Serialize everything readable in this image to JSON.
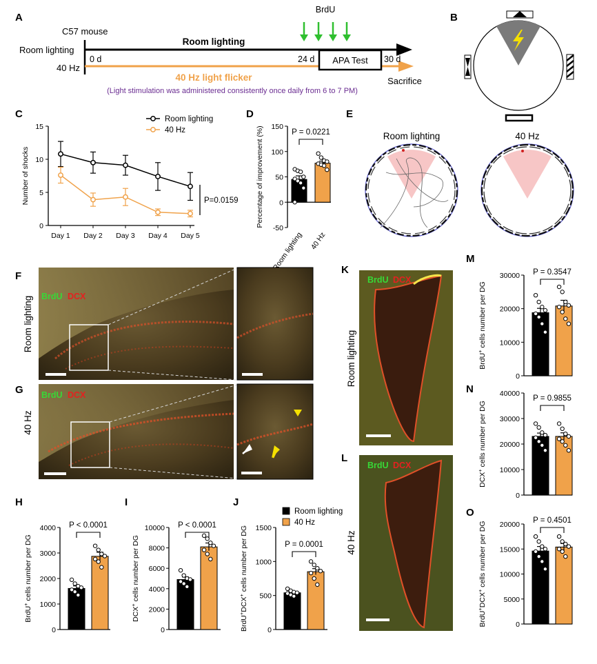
{
  "colors": {
    "room": "#000000",
    "hz40": "#f0a24a",
    "arrow_green": "#2fbf2f",
    "note_purple": "#6a2c91",
    "zone_pink": "#f7c6c6",
    "shock_gray": "#7a7a7a",
    "bolt_yellow": "#f5e000",
    "brdu_green": "#37d837",
    "dcx_red": "#e52020",
    "tissue_dark": "#3a2a14",
    "tissue_light": "#8a7444"
  },
  "icons": [
    "lightning-bolt-icon",
    "arrow-down-icon",
    "arrowhead-icon"
  ],
  "panels": {
    "a": {
      "letter": "A",
      "mouse": "C57 mouse",
      "group_room": "Room lighting",
      "group_40": "40 Hz",
      "start_day": "0 d",
      "brdu_day": "24 d",
      "end_day": "30 d",
      "room_line_label": "Room lighting",
      "flicker_label": "40 Hz light flicker",
      "brdu_label": "BrdU",
      "test_label": "APA Test",
      "sacrifice": "Sacrifice",
      "note": "(Light stimulation was administered consistently once daily from 6 to 7 PM)"
    },
    "b": {
      "letter": "B"
    },
    "c": {
      "letter": "C"
    },
    "d": {
      "letter": "D"
    },
    "e": {
      "letter": "E",
      "title_room": "Room lighting",
      "title_40": "40 Hz"
    },
    "f": {
      "letter": "F",
      "side_label": "Room lighting",
      "stain_green": "BrdU",
      "stain_red": "DCX"
    },
    "g": {
      "letter": "G",
      "side_label": "40 Hz",
      "stain_green": "BrdU",
      "stain_red": "DCX"
    },
    "h": {
      "letter": "H"
    },
    "i": {
      "letter": "I"
    },
    "j": {
      "letter": "J"
    },
    "k": {
      "letter": "K",
      "side_label": "Room lighting",
      "stain_green": "BrdU",
      "stain_red": "DCX"
    },
    "l": {
      "letter": "L",
      "side_label": "40 Hz",
      "stain_green": "BrdU",
      "stain_red": "DCX"
    },
    "m": {
      "letter": "M"
    },
    "n": {
      "letter": "N"
    },
    "o": {
      "letter": "O"
    }
  },
  "chart_data": [
    {
      "id": "c",
      "type": "line",
      "x": [
        "Day 1",
        "Day 2",
        "Day 3",
        "Day 4",
        "Day 5"
      ],
      "ylabel": "Number of shocks",
      "ylim": [
        0,
        15
      ],
      "yticks": [
        "0",
        "5",
        "10",
        "15"
      ],
      "series": [
        {
          "name": "Room lighting",
          "values": [
            10.8,
            9.5,
            9.1,
            7.4,
            5.9
          ],
          "errors": [
            1.9,
            1.6,
            1.5,
            2.1,
            2.1
          ]
        },
        {
          "name": "40 Hz",
          "values": [
            7.6,
            3.9,
            4.3,
            2.0,
            1.8
          ],
          "errors": [
            1.2,
            1.0,
            1.3,
            0.5,
            0.5
          ]
        }
      ],
      "annotation": "P=0.0159",
      "legend": "top-right"
    },
    {
      "id": "d",
      "type": "bar",
      "categories": [
        "Room lighting",
        "40 Hz"
      ],
      "values": [
        45,
        77
      ],
      "errors": [
        7,
        4
      ],
      "ylabel": "Percentage of improvement (%)",
      "ylim": [
        -50,
        150
      ],
      "yticks": [
        "-50",
        "0",
        "50",
        "100",
        "150"
      ],
      "points": [
        [
          65,
          62,
          60,
          50,
          46,
          42,
          38,
          28,
          0
        ],
        [
          96,
          88,
          82,
          80,
          76,
          74,
          72,
          64
        ]
      ],
      "annotation": "P = 0.0221"
    },
    {
      "id": "h",
      "type": "bar",
      "categories": [
        "Room lighting",
        "40 Hz"
      ],
      "values": [
        1610,
        2870
      ],
      "errors": [
        100,
        160
      ],
      "ylabel": "BrdU+ cells number per DG",
      "ylim": [
        0,
        4000
      ],
      "yticks": [
        "0",
        "1000",
        "2000",
        "3000",
        "4000"
      ],
      "points": [
        [
          1950,
          1800,
          1700,
          1640,
          1560,
          1480,
          1350
        ],
        [
          3280,
          3120,
          2960,
          2880,
          2760,
          2660,
          2440
        ]
      ],
      "annotation": "P < 0.0001"
    },
    {
      "id": "i",
      "type": "bar",
      "categories": [
        "Room lighting",
        "40 Hz"
      ],
      "values": [
        4900,
        8100
      ],
      "errors": [
        250,
        380
      ],
      "ylabel": "DCX+ cells number per DG",
      "ylim": [
        0,
        10000
      ],
      "yticks": [
        "0",
        "2000",
        "4000",
        "6000",
        "8000",
        "10000"
      ],
      "points": [
        [
          5800,
          5300,
          5000,
          4900,
          4700,
          4500,
          4200
        ],
        [
          9200,
          8900,
          8500,
          8200,
          7800,
          7400,
          6900
        ]
      ],
      "annotation": "P < 0.0001"
    },
    {
      "id": "j",
      "type": "bar",
      "categories": [
        "Room lighting",
        "40 Hz"
      ],
      "values": [
        540,
        850
      ],
      "errors": [
        18,
        45
      ],
      "ylabel": "BrdU+DCX+ cells number per DG",
      "ylim": [
        0,
        1500
      ],
      "yticks": [
        "0",
        "500",
        "1000",
        "1500"
      ],
      "points": [
        [
          600,
          570,
          550,
          540,
          530,
          510,
          490
        ],
        [
          1000,
          950,
          900,
          860,
          830,
          750,
          660
        ]
      ],
      "annotation": "P = 0.0001",
      "legend": [
        "Room lighting",
        "40 Hz"
      ]
    },
    {
      "id": "m",
      "type": "bar",
      "categories": [
        "Room lighting",
        "40 Hz"
      ],
      "values": [
        18800,
        20800
      ],
      "errors": [
        1300,
        1700
      ],
      "ylabel": "BrdU+ cells number per DG",
      "ylim": [
        0,
        30000
      ],
      "yticks": [
        "0",
        "10000",
        "20000",
        "30000"
      ],
      "points": [
        [
          24000,
          22000,
          20500,
          19500,
          18500,
          17500,
          15500,
          13000
        ],
        [
          26500,
          25000,
          22000,
          21000,
          20500,
          19000,
          17000,
          15500
        ]
      ],
      "annotation": "P = 0.3547"
    },
    {
      "id": "n",
      "type": "bar",
      "categories": [
        "Room lighting",
        "40 Hz"
      ],
      "values": [
        23000,
        23000
      ],
      "errors": [
        1300,
        1400
      ],
      "ylabel": "DCX+ cells number per DG",
      "ylim": [
        0,
        40000
      ],
      "yticks": [
        "0",
        "10000",
        "20000",
        "30000",
        "40000"
      ],
      "points": [
        [
          28000,
          26500,
          24500,
          23500,
          22500,
          21000,
          19500,
          17500
        ],
        [
          28000,
          26000,
          24000,
          23000,
          22000,
          21000,
          19500,
          17500
        ]
      ],
      "annotation": "P = 0.9855"
    },
    {
      "id": "o",
      "type": "bar",
      "categories": [
        "Room lighting",
        "40 Hz"
      ],
      "values": [
        14600,
        15400
      ],
      "errors": [
        900,
        700
      ],
      "ylabel": "BrdU+DCX+ cells number per DG",
      "ylim": [
        0,
        20000
      ],
      "yticks": [
        "0",
        "5000",
        "10000",
        "15000",
        "20000"
      ],
      "points": [
        [
          17500,
          16500,
          15500,
          15000,
          14500,
          13500,
          12500,
          11000
        ],
        [
          17500,
          16500,
          16000,
          15500,
          15000,
          14500,
          13500
        ]
      ],
      "annotation": "P = 0.4501"
    }
  ]
}
